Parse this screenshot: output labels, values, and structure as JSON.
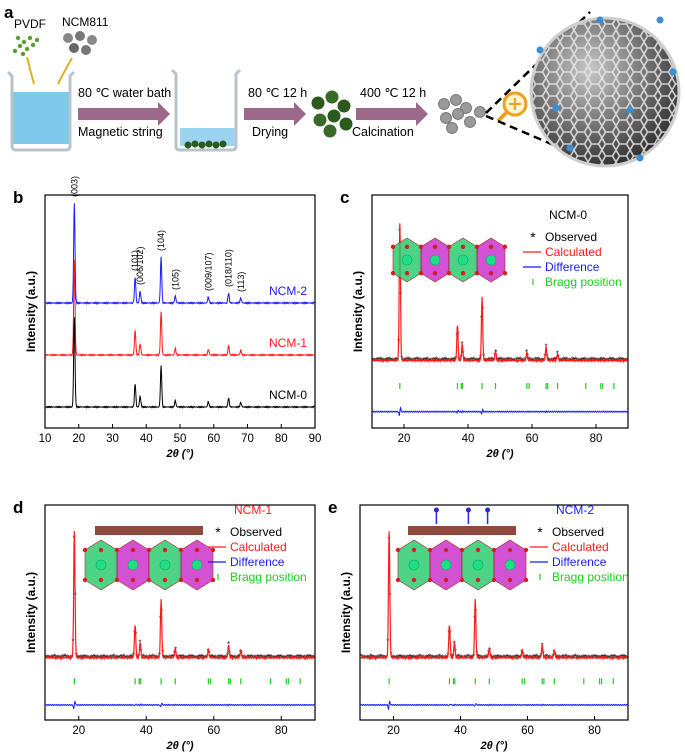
{
  "panel_a": {
    "label": "a",
    "pvdf": "PVDF",
    "ncm": "NCM811",
    "step1_top": "80 ℃ water bath",
    "step1_bottom": "Magnetic string",
    "step2_top": "80 ℃ 12 h",
    "step2_bottom": "Drying",
    "step3_top": "400 ℃ 12 h",
    "step3_bottom": "Calcination",
    "colors": {
      "arrow": "#9b6a8a",
      "water": "#6ec3ea",
      "pvdf": "#5aa02c",
      "ncm": "#777777",
      "dried": "#2c5a1e"
    }
  },
  "chart_data": [
    {
      "panel": "b",
      "type": "line",
      "xlabel": "2θ (°)",
      "ylabel": "Intensity (a.u.)",
      "xlim": [
        10,
        90
      ],
      "xticks": [
        10,
        20,
        30,
        40,
        50,
        60,
        70,
        80,
        90
      ],
      "series": [
        {
          "name": "NCM-2",
          "color": "#1a1aff"
        },
        {
          "name": "NCM-1",
          "color": "#ff1a1a"
        },
        {
          "name": "NCM-0",
          "color": "#000000"
        }
      ],
      "peaks": [
        {
          "x": 18.7,
          "h": 1.0,
          "label": "(003)"
        },
        {
          "x": 36.7,
          "h": 0.26,
          "label": "(101)"
        },
        {
          "x": 38.2,
          "h": 0.12,
          "label": "(006/102)"
        },
        {
          "x": 44.4,
          "h": 0.46,
          "label": "(104)"
        },
        {
          "x": 48.6,
          "h": 0.07,
          "label": "(105)"
        },
        {
          "x": 58.4,
          "h": 0.06,
          "label": "(009/107)"
        },
        {
          "x": 64.4,
          "h": 0.1,
          "label": "(018/110)"
        },
        {
          "x": 68.0,
          "h": 0.05,
          "label": "(113)"
        }
      ]
    },
    {
      "panel": "c",
      "type": "line",
      "title": "NCM-0",
      "title_color": "#000000",
      "xlabel": "2θ (°)",
      "ylabel": "Intensity (a.u.)",
      "xlim": [
        10,
        90
      ],
      "xticks": [
        20,
        40,
        60,
        80
      ],
      "legend": [
        "Observed",
        "Calculated",
        "Difference",
        "Bragg position"
      ],
      "bragg": [
        18.7,
        36.7,
        37.9,
        38.3,
        44.4,
        48.6,
        58.4,
        59.1,
        64.4,
        64.9,
        68.0,
        76.8,
        81.5,
        82.1,
        85.6
      ]
    },
    {
      "panel": "d",
      "type": "line",
      "title": "NCM-1",
      "title_color": "#ff1a1a",
      "xlabel": "2θ (°)",
      "ylabel": "Intensity (a.u.)",
      "xlim": [
        10,
        90
      ],
      "xticks": [
        20,
        40,
        60,
        80
      ],
      "legend": [
        "Observed",
        "Calculated",
        "Difference",
        "Bragg position"
      ],
      "bragg": [
        18.7,
        36.7,
        37.9,
        38.3,
        44.4,
        48.6,
        58.4,
        59.1,
        64.4,
        64.9,
        68.0,
        76.8,
        81.5,
        82.1,
        85.6
      ]
    },
    {
      "panel": "e",
      "type": "line",
      "title": "NCM-2",
      "title_color": "#1a1aff",
      "xlabel": "2θ (°)",
      "ylabel": "Intensity (a.u.)",
      "xlim": [
        10,
        90
      ],
      "xticks": [
        20,
        40,
        60,
        80
      ],
      "legend": [
        "Observed",
        "Calculated",
        "Difference",
        "Bragg position"
      ],
      "bragg": [
        18.7,
        36.7,
        37.9,
        38.3,
        44.4,
        48.6,
        58.4,
        59.1,
        64.4,
        64.9,
        68.0,
        76.8,
        81.5,
        82.1,
        85.6
      ]
    }
  ],
  "legend_colors": {
    "Observed": "#000000",
    "Calculated": "#ff1a1a",
    "Difference": "#1a1aff",
    "Bragg position": "#22cc22"
  }
}
